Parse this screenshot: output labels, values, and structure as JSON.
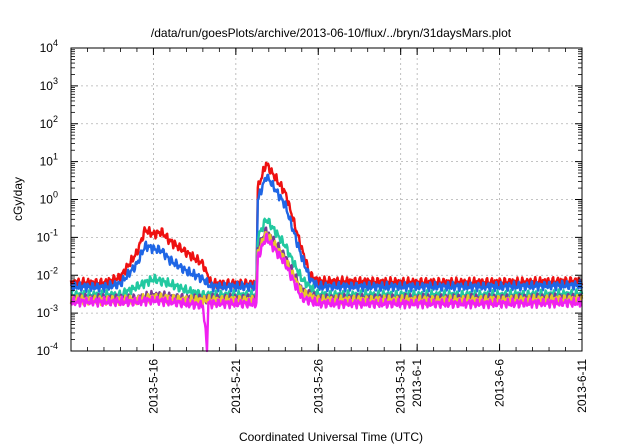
{
  "chart_data": {
    "type": "line",
    "title": "/data/run/goesPlots/archive/2013-06-10/flux/../bryn/31daysMars.plot",
    "xlabel": "Coordinated Universal Time (UTC)",
    "ylabel": "cGy/day",
    "yscale": "log",
    "ylim": [
      0.0001,
      10000
    ],
    "y_ticks": [
      {
        "base": "10",
        "exp": "-4"
      },
      {
        "base": "10",
        "exp": "-3"
      },
      {
        "base": "10",
        "exp": "-2"
      },
      {
        "base": "10",
        "exp": "-1"
      },
      {
        "base": "10",
        "exp": "0"
      },
      {
        "base": "10",
        "exp": "1"
      },
      {
        "base": "10",
        "exp": "2"
      },
      {
        "base": "10",
        "exp": "3"
      },
      {
        "base": "10",
        "exp": "4"
      }
    ],
    "xlim": [
      "2013-05-11",
      "2013-06-11"
    ],
    "x_ticks": [
      "2013-5-16",
      "2013-5-21",
      "2013-5-26",
      "2013-5-31",
      "2013-6-1",
      "2013-6-6",
      "2013-6-11"
    ],
    "grid": true,
    "colors": [
      "#ee1111",
      "#1f66e5",
      "#22c9a0",
      "#7a3a96",
      "#e8c828",
      "#f020f0"
    ],
    "series": [
      {
        "color": "#ee1111",
        "points": [
          [
            "2013-05-11",
            0.0065
          ],
          [
            "2013-05-13",
            0.0062
          ],
          [
            "2013-05-14",
            0.009
          ],
          [
            "2013-05-15",
            0.04
          ],
          [
            "2013-05-15T12:00",
            0.16
          ],
          [
            "2013-05-16",
            0.12
          ],
          [
            "2013-05-16T12:00",
            0.14
          ],
          [
            "2013-05-17",
            0.08
          ],
          [
            "2013-05-18",
            0.04
          ],
          [
            "2013-05-19",
            0.02
          ],
          [
            "2013-05-19T12:00",
            0.006
          ],
          [
            "2013-05-21",
            0.006
          ],
          [
            "2013-05-22T06:00",
            0.006
          ],
          [
            "2013-05-22T08:00",
            2.0
          ],
          [
            "2013-05-22T20:00",
            9.0
          ],
          [
            "2013-05-23",
            7.0
          ],
          [
            "2013-05-24",
            1.5
          ],
          [
            "2013-05-25",
            0.05
          ],
          [
            "2013-05-25T12:00",
            0.01
          ],
          [
            "2013-05-26",
            0.007
          ],
          [
            "2013-06-01",
            0.0065
          ],
          [
            "2013-06-06",
            0.0065
          ],
          [
            "2013-06-11",
            0.007
          ]
        ]
      },
      {
        "color": "#1f66e5",
        "points": [
          [
            "2013-05-11",
            0.005
          ],
          [
            "2013-05-13",
            0.0048
          ],
          [
            "2013-05-14",
            0.006
          ],
          [
            "2013-05-15",
            0.02
          ],
          [
            "2013-05-15T12:00",
            0.06
          ],
          [
            "2013-05-16",
            0.05
          ],
          [
            "2013-05-16T12:00",
            0.045
          ],
          [
            "2013-05-17",
            0.025
          ],
          [
            "2013-05-18",
            0.013
          ],
          [
            "2013-05-19",
            0.008
          ],
          [
            "2013-05-19T12:00",
            0.005
          ],
          [
            "2013-05-21",
            0.005
          ],
          [
            "2013-05-22T06:00",
            0.005
          ],
          [
            "2013-05-22T08:00",
            1.0
          ],
          [
            "2013-05-22T20:00",
            4.0
          ],
          [
            "2013-05-23",
            3.5
          ],
          [
            "2013-05-24",
            0.7
          ],
          [
            "2013-05-25",
            0.03
          ],
          [
            "2013-05-25T12:00",
            0.008
          ],
          [
            "2013-05-26",
            0.005
          ],
          [
            "2013-06-01",
            0.005
          ],
          [
            "2013-06-06",
            0.005
          ],
          [
            "2013-06-11",
            0.0055
          ]
        ]
      },
      {
        "color": "#22c9a0",
        "points": [
          [
            "2013-05-11",
            0.003
          ],
          [
            "2013-05-14",
            0.003
          ],
          [
            "2013-05-15",
            0.005
          ],
          [
            "2013-05-16",
            0.008
          ],
          [
            "2013-05-17",
            0.006
          ],
          [
            "2013-05-18",
            0.004
          ],
          [
            "2013-05-19",
            0.003
          ],
          [
            "2013-05-21",
            0.003
          ],
          [
            "2013-05-22T06:00",
            0.003
          ],
          [
            "2013-05-22T08:00",
            0.1
          ],
          [
            "2013-05-22T20:00",
            0.3
          ],
          [
            "2013-05-23",
            0.25
          ],
          [
            "2013-05-24",
            0.06
          ],
          [
            "2013-05-25",
            0.008
          ],
          [
            "2013-05-26",
            0.003
          ],
          [
            "2013-06-01",
            0.003
          ],
          [
            "2013-06-06",
            0.003
          ],
          [
            "2013-06-11",
            0.0032
          ]
        ]
      },
      {
        "color": "#7a3a96",
        "points": [
          [
            "2013-05-11",
            0.0024
          ],
          [
            "2013-05-15",
            0.0024
          ],
          [
            "2013-05-16",
            0.003
          ],
          [
            "2013-05-18",
            0.0024
          ],
          [
            "2013-05-21",
            0.0024
          ],
          [
            "2013-05-22T06:00",
            0.0024
          ],
          [
            "2013-05-22T08:00",
            0.05
          ],
          [
            "2013-05-22T20:00",
            0.15
          ],
          [
            "2013-05-23",
            0.12
          ],
          [
            "2013-05-24",
            0.03
          ],
          [
            "2013-05-25",
            0.004
          ],
          [
            "2013-05-26",
            0.0024
          ],
          [
            "2013-06-06",
            0.0024
          ],
          [
            "2013-06-11",
            0.0025
          ]
        ]
      },
      {
        "color": "#e8c828",
        "points": [
          [
            "2013-05-11",
            0.0022
          ],
          [
            "2013-05-15",
            0.0022
          ],
          [
            "2013-05-16",
            0.0026
          ],
          [
            "2013-05-18",
            0.0022
          ],
          [
            "2013-05-21",
            0.0022
          ],
          [
            "2013-05-22T06:00",
            0.0022
          ],
          [
            "2013-05-22T08:00",
            0.04
          ],
          [
            "2013-05-22T20:00",
            0.13
          ],
          [
            "2013-05-23",
            0.1
          ],
          [
            "2013-05-24",
            0.025
          ],
          [
            "2013-05-25",
            0.0035
          ],
          [
            "2013-05-26",
            0.0022
          ],
          [
            "2013-06-06",
            0.0022
          ],
          [
            "2013-06-11",
            0.0023
          ]
        ]
      },
      {
        "color": "#f020f0",
        "points": [
          [
            "2013-05-11",
            0.002
          ],
          [
            "2013-05-15",
            0.002
          ],
          [
            "2013-05-16",
            0.0022
          ],
          [
            "2013-05-18",
            0.0018
          ],
          [
            "2013-05-19",
            0.0016
          ],
          [
            "2013-05-19T06:00",
            0.00013
          ],
          [
            "2013-05-19T08:00",
            0.0018
          ],
          [
            "2013-05-21",
            0.0018
          ],
          [
            "2013-05-22T06:00",
            0.0018
          ],
          [
            "2013-05-22T08:00",
            0.03
          ],
          [
            "2013-05-22T20:00",
            0.1
          ],
          [
            "2013-05-23",
            0.08
          ],
          [
            "2013-05-24",
            0.02
          ],
          [
            "2013-05-25",
            0.0025
          ],
          [
            "2013-05-26",
            0.0018
          ],
          [
            "2013-06-06",
            0.0018
          ],
          [
            "2013-06-11",
            0.0019
          ]
        ]
      }
    ]
  }
}
